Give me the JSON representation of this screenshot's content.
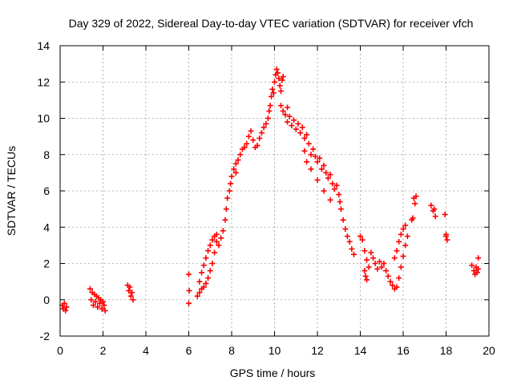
{
  "chart_data": {
    "type": "scatter",
    "title": "Day 329 of 2022, Sidereal Day-to-day VTEC variation (SDTVAR) for receiver vfch",
    "xlabel": "GPS time / hours",
    "ylabel": "SDTVAR / TECUs",
    "xlim": [
      0,
      20
    ],
    "ylim": [
      -2,
      14
    ],
    "x_ticks": [
      "0",
      "2",
      "4",
      "6",
      "8",
      "10",
      "12",
      "14",
      "16",
      "18",
      "20"
    ],
    "y_ticks": [
      "-2",
      "0",
      "2",
      "4",
      "6",
      "8",
      "10",
      "12",
      "14"
    ],
    "grid": true,
    "marker": "+",
    "color": "#ff0000",
    "series": [
      {
        "name": "SDTVAR",
        "points": [
          [
            0.1,
            -0.3
          ],
          [
            0.15,
            -0.5
          ],
          [
            0.2,
            -0.2
          ],
          [
            0.25,
            -0.6
          ],
          [
            0.3,
            -0.4
          ],
          [
            1.4,
            0.6
          ],
          [
            1.45,
            0.0
          ],
          [
            1.5,
            0.4
          ],
          [
            1.55,
            -0.3
          ],
          [
            1.6,
            0.3
          ],
          [
            1.65,
            -0.1
          ],
          [
            1.7,
            0.2
          ],
          [
            1.75,
            -0.4
          ],
          [
            1.8,
            0.1
          ],
          [
            1.85,
            -0.2
          ],
          [
            1.9,
            0.0
          ],
          [
            1.95,
            -0.5
          ],
          [
            2.0,
            -0.1
          ],
          [
            2.05,
            -0.3
          ],
          [
            2.1,
            -0.6
          ],
          [
            3.15,
            0.8
          ],
          [
            3.2,
            0.5
          ],
          [
            3.25,
            0.7
          ],
          [
            3.3,
            0.2
          ],
          [
            3.35,
            0.4
          ],
          [
            3.4,
            0.0
          ],
          [
            6.0,
            1.4
          ],
          [
            6.02,
            0.5
          ],
          [
            6.0,
            -0.2
          ],
          [
            6.4,
            0.2
          ],
          [
            6.5,
            0.4
          ],
          [
            6.6,
            0.6
          ],
          [
            6.7,
            0.7
          ],
          [
            6.8,
            0.9
          ],
          [
            6.9,
            1.2
          ],
          [
            6.5,
            1.0
          ],
          [
            6.6,
            1.5
          ],
          [
            6.7,
            1.9
          ],
          [
            6.8,
            2.3
          ],
          [
            6.9,
            2.7
          ],
          [
            7.0,
            3.0
          ],
          [
            7.1,
            3.3
          ],
          [
            7.2,
            3.5
          ],
          [
            7.3,
            3.6
          ],
          [
            7.0,
            1.6
          ],
          [
            7.1,
            2.0
          ],
          [
            7.2,
            2.6
          ],
          [
            7.3,
            3.2
          ],
          [
            7.4,
            3.0
          ],
          [
            7.5,
            3.4
          ],
          [
            7.6,
            3.8
          ],
          [
            7.7,
            4.4
          ],
          [
            7.75,
            5.0
          ],
          [
            7.8,
            5.6
          ],
          [
            7.9,
            6.0
          ],
          [
            7.95,
            6.4
          ],
          [
            8.0,
            6.8
          ],
          [
            8.1,
            7.2
          ],
          [
            8.2,
            7.5
          ],
          [
            8.3,
            7.7
          ],
          [
            8.2,
            7.0
          ],
          [
            8.4,
            8.0
          ],
          [
            8.5,
            8.3
          ],
          [
            8.6,
            8.4
          ],
          [
            8.7,
            8.6
          ],
          [
            8.8,
            9.0
          ],
          [
            8.9,
            9.3
          ],
          [
            9.0,
            8.8
          ],
          [
            9.1,
            8.4
          ],
          [
            9.2,
            8.5
          ],
          [
            9.3,
            8.9
          ],
          [
            9.4,
            9.2
          ],
          [
            9.5,
            9.5
          ],
          [
            9.6,
            9.7
          ],
          [
            9.7,
            10.0
          ],
          [
            9.75,
            10.4
          ],
          [
            9.8,
            10.7
          ],
          [
            9.85,
            11.2
          ],
          [
            9.9,
            11.6
          ],
          [
            9.95,
            11.4
          ],
          [
            10.0,
            12.0
          ],
          [
            10.05,
            12.4
          ],
          [
            10.1,
            12.7
          ],
          [
            10.15,
            12.5
          ],
          [
            10.2,
            12.2
          ],
          [
            10.25,
            11.8
          ],
          [
            10.3,
            11.5
          ],
          [
            10.35,
            12.1
          ],
          [
            10.4,
            12.3
          ],
          [
            10.3,
            10.7
          ],
          [
            10.4,
            10.4
          ],
          [
            10.5,
            10.2
          ],
          [
            10.6,
            10.6
          ],
          [
            10.6,
            9.8
          ],
          [
            10.7,
            10.1
          ],
          [
            10.8,
            9.6
          ],
          [
            10.9,
            9.9
          ],
          [
            11.0,
            9.4
          ],
          [
            11.1,
            9.7
          ],
          [
            11.2,
            9.2
          ],
          [
            11.3,
            9.5
          ],
          [
            11.4,
            8.9
          ],
          [
            11.5,
            9.1
          ],
          [
            11.4,
            8.2
          ],
          [
            11.6,
            8.6
          ],
          [
            11.7,
            8.0
          ],
          [
            11.8,
            8.3
          ],
          [
            11.9,
            7.9
          ],
          [
            12.0,
            7.6
          ],
          [
            12.1,
            7.8
          ],
          [
            12.2,
            7.2
          ],
          [
            12.3,
            7.4
          ],
          [
            12.4,
            7.0
          ],
          [
            12.5,
            6.7
          ],
          [
            12.6,
            6.9
          ],
          [
            12.7,
            6.4
          ],
          [
            12.8,
            6.1
          ],
          [
            12.9,
            6.3
          ],
          [
            13.0,
            5.8
          ],
          [
            13.05,
            5.4
          ],
          [
            13.1,
            5.0
          ],
          [
            13.2,
            4.4
          ],
          [
            13.3,
            3.9
          ],
          [
            13.4,
            3.5
          ],
          [
            13.5,
            3.2
          ],
          [
            13.6,
            2.8
          ],
          [
            13.7,
            2.5
          ],
          [
            11.5,
            7.6
          ],
          [
            11.7,
            7.2
          ],
          [
            12.0,
            6.6
          ],
          [
            12.3,
            6.0
          ],
          [
            12.6,
            5.5
          ],
          [
            14.0,
            3.5
          ],
          [
            14.1,
            3.3
          ],
          [
            14.2,
            2.7
          ],
          [
            14.3,
            2.2
          ],
          [
            14.4,
            1.8
          ],
          [
            14.5,
            2.6
          ],
          [
            14.6,
            2.3
          ],
          [
            14.7,
            2.0
          ],
          [
            14.8,
            1.7
          ],
          [
            14.9,
            2.1
          ],
          [
            14.2,
            1.6
          ],
          [
            14.25,
            1.3
          ],
          [
            14.3,
            1.1
          ],
          [
            15.0,
            1.8
          ],
          [
            15.1,
            2.0
          ],
          [
            15.2,
            1.6
          ],
          [
            15.3,
            1.3
          ],
          [
            15.4,
            1.0
          ],
          [
            15.5,
            0.8
          ],
          [
            15.6,
            0.6
          ],
          [
            15.7,
            0.7
          ],
          [
            15.8,
            1.2
          ],
          [
            15.9,
            1.8
          ],
          [
            16.0,
            2.4
          ],
          [
            16.1,
            3.0
          ],
          [
            16.2,
            3.5
          ],
          [
            15.6,
            2.3
          ],
          [
            15.7,
            2.7
          ],
          [
            15.8,
            3.2
          ],
          [
            15.9,
            3.6
          ],
          [
            16.0,
            3.9
          ],
          [
            16.1,
            4.1
          ],
          [
            16.4,
            4.4
          ],
          [
            16.45,
            4.5
          ],
          [
            16.5,
            5.6
          ],
          [
            16.55,
            5.3
          ],
          [
            16.6,
            5.7
          ],
          [
            17.3,
            5.2
          ],
          [
            17.4,
            4.9
          ],
          [
            17.5,
            4.6
          ],
          [
            17.45,
            5.0
          ],
          [
            17.95,
            4.7
          ],
          [
            18.0,
            3.6
          ],
          [
            18.05,
            3.3
          ],
          [
            18.0,
            3.5
          ],
          [
            19.2,
            1.9
          ],
          [
            19.3,
            1.6
          ],
          [
            19.35,
            1.4
          ],
          [
            19.4,
            1.8
          ],
          [
            19.45,
            1.5
          ],
          [
            19.5,
            2.3
          ],
          [
            19.5,
            1.7
          ]
        ]
      }
    ]
  }
}
